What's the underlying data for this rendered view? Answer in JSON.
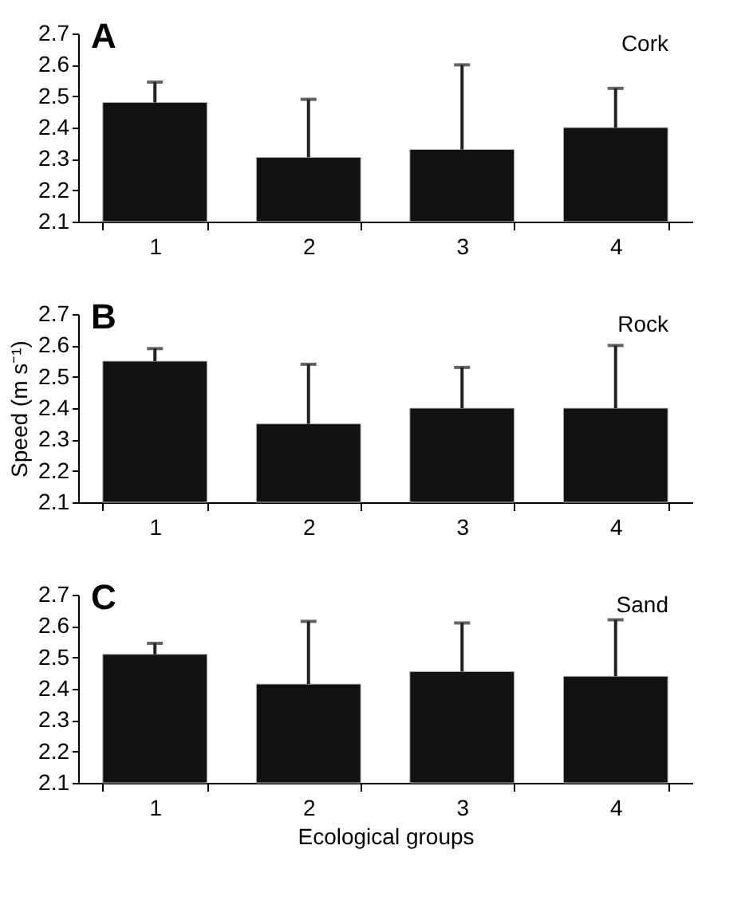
{
  "chart_data": [
    {
      "type": "bar",
      "title": "A",
      "subtitle": "Cork",
      "categories": [
        "1",
        "2",
        "3",
        "4"
      ],
      "values": [
        2.48,
        2.305,
        2.33,
        2.4
      ],
      "errors": [
        [
          2.48,
          2.545
        ],
        [
          2.305,
          2.49
        ],
        [
          2.33,
          2.6
        ],
        [
          2.4,
          2.525
        ]
      ],
      "color": "#111111",
      "ylim": [
        2.1,
        2.7
      ],
      "yticks": [
        2.1,
        2.2,
        2.3,
        2.4,
        2.5,
        2.6,
        2.7
      ],
      "grid": false
    },
    {
      "type": "bar",
      "title": "B",
      "subtitle": "Rock",
      "ylabel": "Speed (m s⁻¹)",
      "categories": [
        "1",
        "2",
        "3",
        "4"
      ],
      "values": [
        2.55,
        2.35,
        2.4,
        2.4
      ],
      "errors": [
        [
          2.55,
          2.59
        ],
        [
          2.35,
          2.54
        ],
        [
          2.4,
          2.53
        ],
        [
          2.4,
          2.6
        ]
      ],
      "color": "#111111",
      "ylim": [
        2.1,
        2.7
      ],
      "yticks": [
        2.1,
        2.2,
        2.3,
        2.4,
        2.5,
        2.6,
        2.7
      ],
      "grid": false
    },
    {
      "type": "bar",
      "title": "C",
      "subtitle": "Sand",
      "xlabel": "Ecological groups",
      "categories": [
        "1",
        "2",
        "3",
        "4"
      ],
      "values": [
        2.51,
        2.415,
        2.455,
        2.44
      ],
      "errors": [
        [
          2.51,
          2.545
        ],
        [
          2.415,
          2.615
        ],
        [
          2.455,
          2.61
        ],
        [
          2.44,
          2.62
        ]
      ],
      "color": "#111111",
      "ylim": [
        2.1,
        2.7
      ],
      "yticks": [
        2.1,
        2.2,
        2.3,
        2.4,
        2.5,
        2.6,
        2.7
      ],
      "grid": false
    }
  ]
}
